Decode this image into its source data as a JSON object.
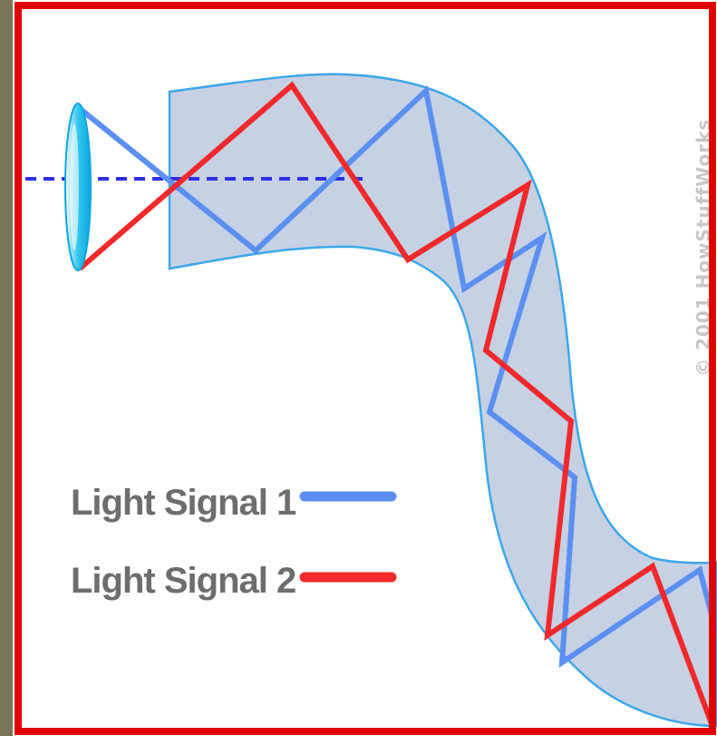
{
  "legend": {
    "items": [
      {
        "label": "Light Signal 1",
        "color": "#5b8ff2"
      },
      {
        "label": "Light Signal 2",
        "color": "#f2292a"
      }
    ]
  },
  "copyright": "© 2001 HowStuffWorks",
  "colors": {
    "outer_frame": "#7a7558",
    "border": "#e00000",
    "fiber_fill": "#c6d1e4",
    "fiber_edge": "#3ba7ea",
    "axis": "#2f2fe6",
    "lens": "#33c7ef"
  }
}
